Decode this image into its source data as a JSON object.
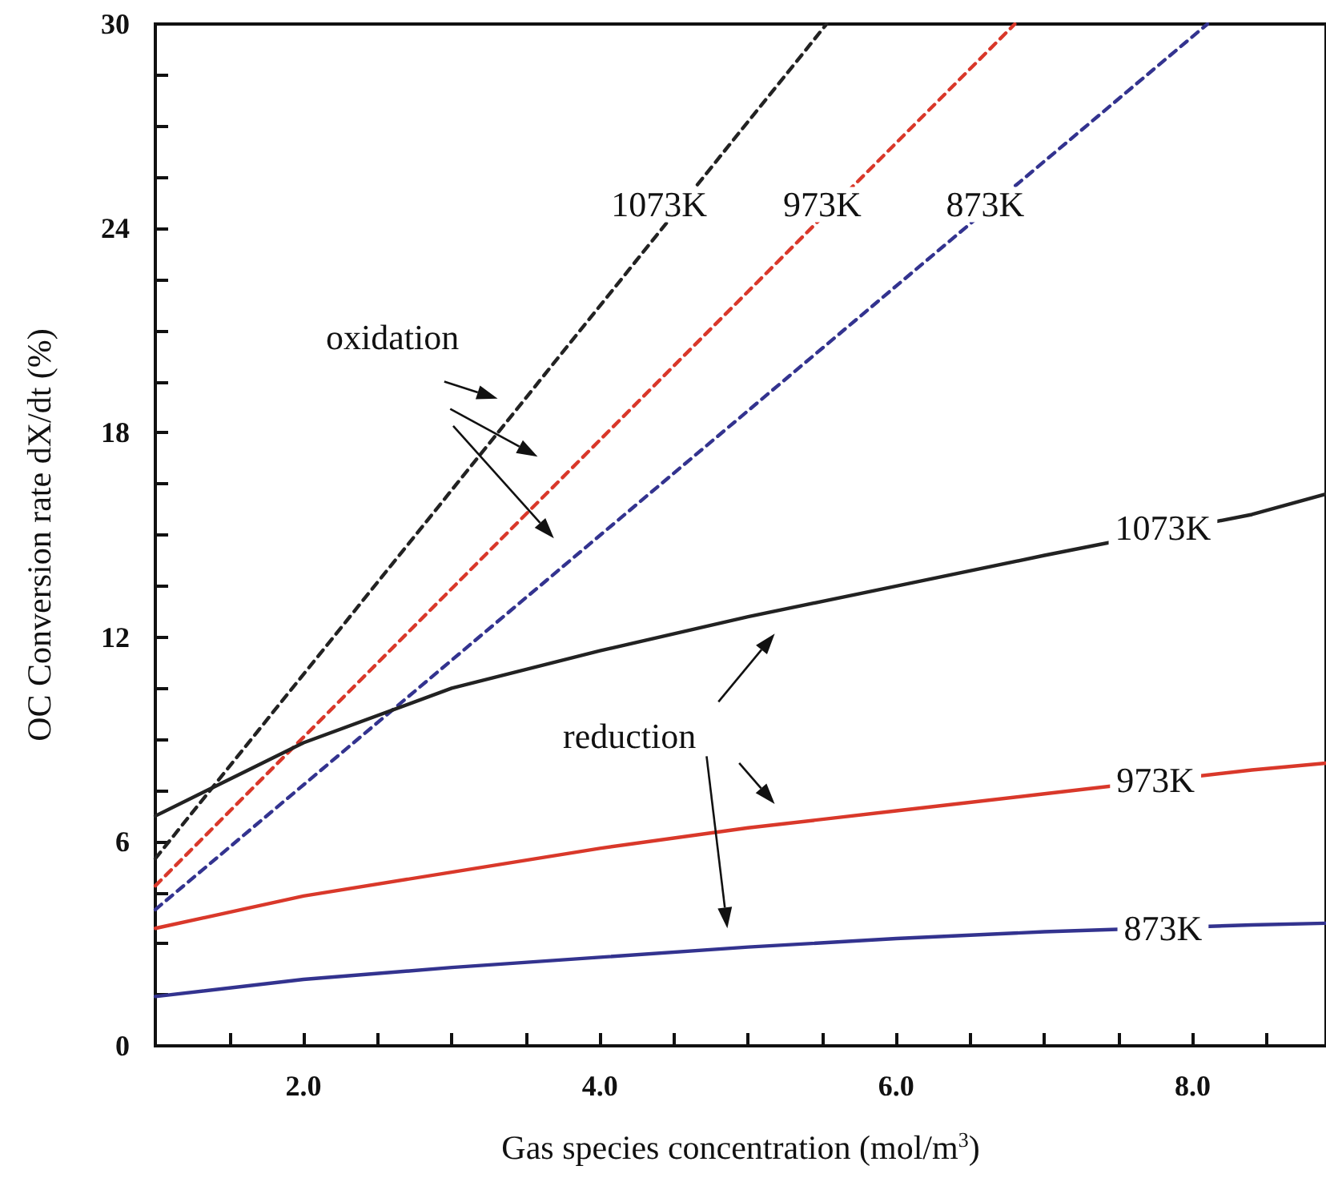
{
  "chart_data": {
    "type": "line",
    "xlabel": "Gas species concentration (mol/m$^{3}$)",
    "ylabel": "OC Conversion rate dX/dt (%)",
    "xlim": [
      1,
      8.9
    ],
    "ylim": [
      0,
      30
    ],
    "xticks": [
      {
        "value": 1.5,
        "label": null
      },
      {
        "value": 2,
        "label": "2.0"
      },
      {
        "value": 2.5,
        "label": null
      },
      {
        "value": 3,
        "label": null
      },
      {
        "value": 3.5,
        "label": null
      },
      {
        "value": 4,
        "label": "4.0"
      },
      {
        "value": 4.5,
        "label": null
      },
      {
        "value": 5,
        "label": null
      },
      {
        "value": 5.5,
        "label": null
      },
      {
        "value": 6,
        "label": "6.0"
      },
      {
        "value": 6.5,
        "label": null
      },
      {
        "value": 7,
        "label": null
      },
      {
        "value": 7.5,
        "label": null
      },
      {
        "value": 8,
        "label": "8.0"
      },
      {
        "value": 8.5,
        "label": null
      }
    ],
    "yticks": [
      0,
      {
        "value": 1.5,
        "label": null
      },
      {
        "value": 3,
        "label": null
      },
      {
        "value": 4.5,
        "label": null
      },
      6,
      {
        "value": 7.5,
        "label": null
      },
      {
        "value": 9,
        "label": null
      },
      {
        "value": 10.5,
        "label": null
      },
      12,
      {
        "value": 13.5,
        "label": null
      },
      {
        "value": 15,
        "label": null
      },
      {
        "value": 16.5,
        "label": null
      },
      18,
      {
        "value": 19.5,
        "label": null
      },
      {
        "value": 21,
        "label": null
      },
      {
        "value": 22.5,
        "label": null
      },
      24,
      {
        "value": 25.5,
        "label": null
      },
      {
        "value": 27,
        "label": null
      },
      {
        "value": 28.5,
        "label": null
      },
      30
    ],
    "grid": false,
    "series": [
      {
        "name": "1073K",
        "color": "#222222",
        "line_style": "dashed",
        "x": [
          1,
          5.53
        ],
        "values": [
          5.5,
          30
        ]
      },
      {
        "name": "973K",
        "color": "#d9382a",
        "line_style": "dashed",
        "x": [
          1,
          6.8
        ],
        "values": [
          4.7,
          30
        ]
      },
      {
        "name": "873K",
        "color": "#33338f",
        "line_style": "dashed",
        "x": [
          1,
          8.1
        ],
        "values": [
          4.0,
          30
        ]
      },
      {
        "name": "1073K",
        "color": "#222222",
        "line_style": "solid",
        "x": [
          1,
          2,
          3,
          4,
          5,
          6,
          7,
          8.4,
          8.9
        ],
        "values": [
          6.75,
          8.9,
          10.5,
          11.6,
          12.6,
          13.5,
          14.4,
          15.6,
          16.2
        ]
      },
      {
        "name": "973K",
        "color": "#d9382a",
        "line_style": "solid",
        "x": [
          1,
          2,
          3,
          4,
          5,
          6,
          7,
          8.4,
          8.9
        ],
        "values": [
          3.45,
          4.4,
          5.1,
          5.8,
          6.4,
          6.9,
          7.4,
          8.1,
          8.3
        ]
      },
      {
        "name": "873K",
        "color": "#33338f",
        "line_style": "solid",
        "x": [
          1,
          2,
          3,
          4,
          5,
          6,
          7,
          8.4,
          8.9
        ],
        "values": [
          1.45,
          1.95,
          2.3,
          2.6,
          2.9,
          3.15,
          3.35,
          3.55,
          3.6
        ]
      }
    ],
    "annotations": [
      "oxidation",
      "reduction"
    ]
  }
}
